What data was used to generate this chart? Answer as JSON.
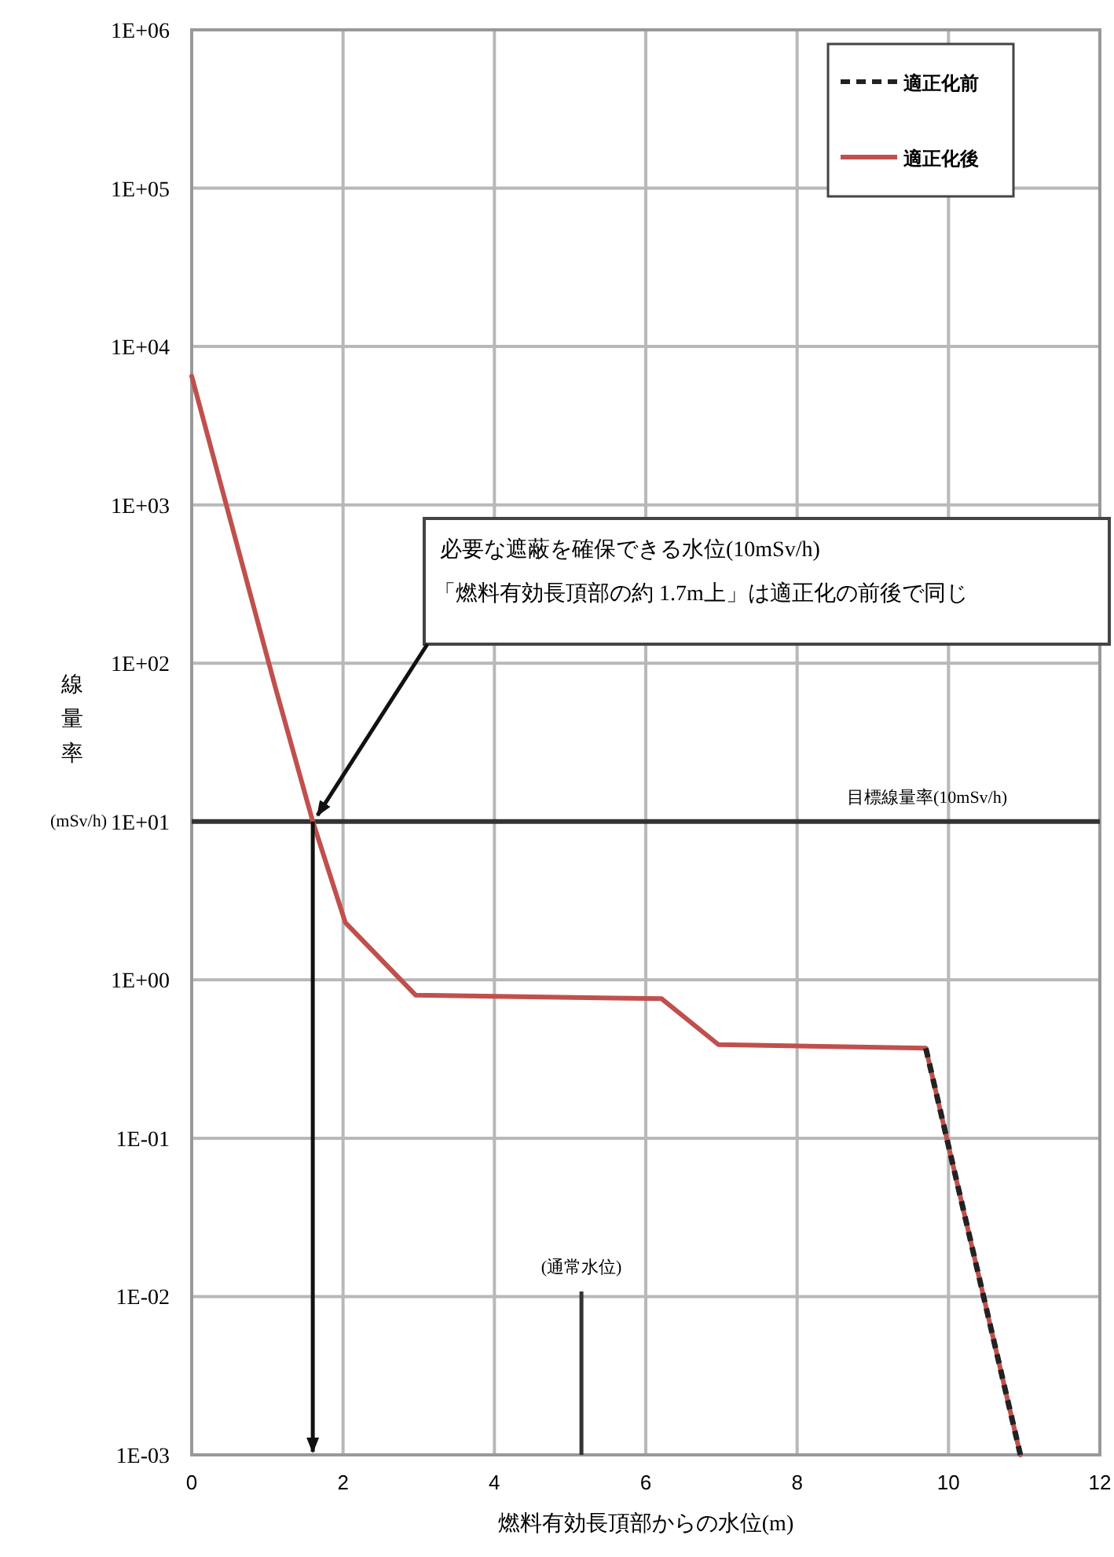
{
  "chart_data": {
    "type": "line",
    "xlabel": "燃料有効長頂部からの水位(m)",
    "ylabel": "線量率(mSv/h)",
    "log": "y",
    "grid": true,
    "legend": "top right",
    "line_style": "solid",
    "marker": "none",
    "xlim": [
      0,
      12
    ],
    "xticks": [
      0,
      2,
      4,
      6,
      8,
      10,
      12
    ],
    "ylim": [
      0.001,
      1000000
    ],
    "yticks": [
      {
        "value": 1000000,
        "label": "1E+06"
      },
      {
        "value": 100000,
        "label": "1E+05"
      },
      {
        "value": 10000,
        "label": "1E+04"
      },
      {
        "value": 1000,
        "label": "1E+03"
      },
      {
        "value": 100,
        "label": "1E+02"
      },
      {
        "value": 10,
        "label": "1E+01"
      },
      {
        "value": 1,
        "label": "1E+00"
      },
      {
        "value": 0.1,
        "label": "1E-01"
      },
      {
        "value": 0.01,
        "label": "1E-02"
      },
      {
        "value": 0.001,
        "label": "1E-03"
      }
    ],
    "series": [
      {
        "name": "適正化前",
        "color": "#222222",
        "line_style": "dashed",
        "x": [
          9.7,
          10.95
        ],
        "values": [
          0.37,
          0.001
        ]
      },
      {
        "name": "適正化後",
        "color": "#c0504d",
        "x": [
          0,
          1.1,
          1.6,
          2.03,
          2.96,
          6.21,
          6.96,
          9.7,
          10.95
        ],
        "values": [
          6500,
          72,
          10,
          2.3,
          0.8,
          0.76,
          0.39,
          0.37,
          0.001
        ]
      }
    ],
    "ref_lines": [
      {
        "axis": "y",
        "value": 10,
        "label": "目標線量率(10mSv/h)",
        "color": "#333333"
      },
      {
        "axis": "x",
        "value": 5.15,
        "label": "(通常水位)",
        "color": "#333333"
      }
    ],
    "annotations": [
      "必要な遮蔽を確保できる水位(10mSv/h)",
      "「燃料有効長頂部の約 1.7m上」は適正化の前後で同じ"
    ]
  }
}
